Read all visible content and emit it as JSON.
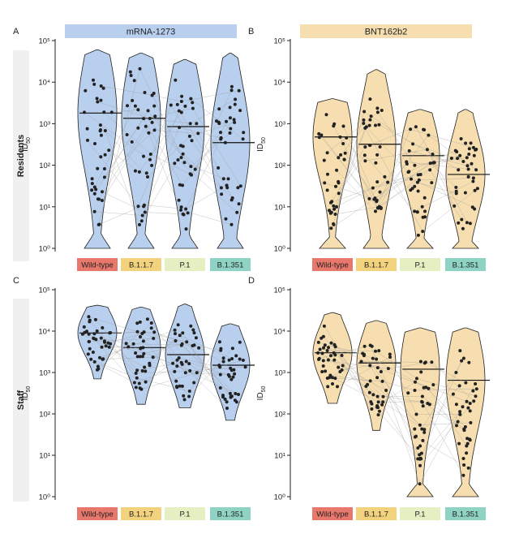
{
  "row_labels": [
    "Residents",
    "Staff"
  ],
  "variants": [
    {
      "label": "Wild-type",
      "color": "#e8786c"
    },
    {
      "label": "B.1.1.7",
      "color": "#f3d27d"
    },
    {
      "label": "P.1",
      "color": "#e4efc2"
    },
    {
      "label": "B.1.351",
      "color": "#8ed3c3"
    }
  ],
  "vaccine_colors": {
    "mRNA-1273": "#b8cfee",
    "BNT162b2": "#f6deb0"
  },
  "y_tick_labels": [
    "10⁰",
    "10¹",
    "10²",
    "10³",
    "10⁴",
    "10⁵"
  ],
  "chart_data": [
    {
      "panel_letter": "A",
      "header": "mRNA-1273",
      "row": "Residents",
      "type": "violin",
      "scale": "log10",
      "ylim": [
        1,
        100000
      ],
      "ylabel_main": "ID",
      "ylabel_sub": "50",
      "categories": [
        "Wild-type",
        "B.1.1.7",
        "P.1",
        "B.1.351"
      ],
      "medians": [
        1800,
        1350,
        850,
        350
      ],
      "maxima": [
        60000,
        50000,
        35000,
        50000
      ],
      "minima": [
        1,
        1,
        1,
        1
      ]
    },
    {
      "panel_letter": "B",
      "header": "BNT162b2",
      "row": "Residents",
      "type": "violin",
      "scale": "log10",
      "ylim": [
        1,
        100000
      ],
      "ylabel_main": "ID",
      "ylabel_sub": "50",
      "categories": [
        "Wild-type",
        "B.1.1.7",
        "P.1",
        "B.1.351"
      ],
      "medians": [
        480,
        320,
        170,
        60
      ],
      "maxima": [
        4000,
        20000,
        2200,
        2200
      ],
      "minima": [
        1,
        1,
        1,
        1
      ]
    },
    {
      "panel_letter": "C",
      "header": "",
      "row": "Staff",
      "type": "violin",
      "scale": "log10",
      "ylim": [
        1,
        100000
      ],
      "ylabel_main": "ID",
      "ylabel_sub": "50",
      "categories": [
        "Wild-type",
        "B.1.1.7",
        "P.1",
        "B.1.351"
      ],
      "medians": [
        9000,
        4000,
        2700,
        1500
      ],
      "maxima": [
        42000,
        38000,
        45000,
        15000
      ],
      "minima": [
        700,
        170,
        140,
        70
      ]
    },
    {
      "panel_letter": "D",
      "header": "",
      "row": "Staff",
      "type": "violin",
      "scale": "log10",
      "ylim": [
        1,
        100000
      ],
      "ylabel_main": "ID",
      "ylabel_sub": "50",
      "categories": [
        "Wild-type",
        "B.1.1.7",
        "P.1",
        "B.1.351"
      ],
      "medians": [
        3000,
        1700,
        1200,
        650
      ],
      "maxima": [
        28000,
        18000,
        12000,
        12000
      ],
      "minima": [
        180,
        40,
        1,
        1
      ]
    }
  ]
}
